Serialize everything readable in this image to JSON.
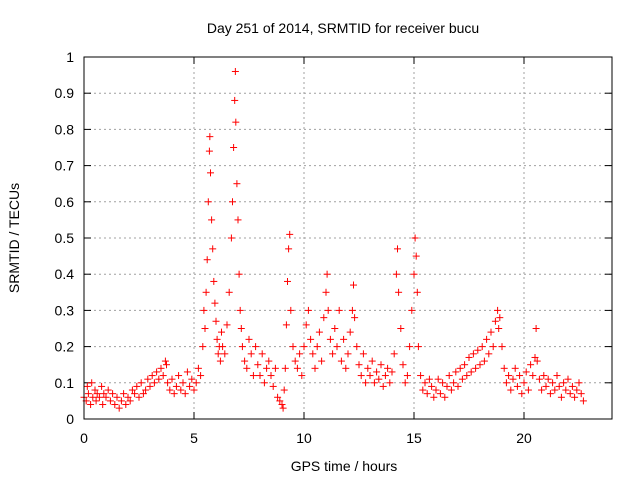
{
  "chart_data": {
    "type": "scatter",
    "title": "Day 251 of 2014, SRMTID for receiver bucu",
    "xlabel": "GPS time / hours",
    "ylabel": "SRMTID / TECUs",
    "xlim": [
      0,
      24
    ],
    "ylim": [
      0,
      1
    ],
    "xticks": [
      0,
      5,
      10,
      15,
      20
    ],
    "xtick_labels": [
      "0",
      "5",
      "10",
      "15",
      "20"
    ],
    "yticks": [
      0,
      0.1,
      0.2,
      0.3,
      0.4,
      0.5,
      0.6,
      0.7,
      0.8,
      0.9,
      1
    ],
    "ytick_labels": [
      "0",
      "0.1",
      "0.2",
      "0.3",
      "0.4",
      "0.5",
      "0.6",
      "0.7",
      "0.8",
      "0.9",
      "1"
    ],
    "grid": true,
    "marker": "+",
    "series_color": "#ff0000",
    "series": [
      {
        "name": "SRMTID",
        "points": [
          [
            0.0,
            0.06
          ],
          [
            0.1,
            0.05
          ],
          [
            0.15,
            0.09
          ],
          [
            0.2,
            0.07
          ],
          [
            0.3,
            0.04
          ],
          [
            0.35,
            0.1
          ],
          [
            0.4,
            0.06
          ],
          [
            0.5,
            0.08
          ],
          [
            0.55,
            0.05
          ],
          [
            0.6,
            0.07
          ],
          [
            0.7,
            0.06
          ],
          [
            0.8,
            0.09
          ],
          [
            0.85,
            0.04
          ],
          [
            0.9,
            0.07
          ],
          [
            1.0,
            0.06
          ],
          [
            1.1,
            0.08
          ],
          [
            1.2,
            0.05
          ],
          [
            1.3,
            0.07
          ],
          [
            1.4,
            0.04
          ],
          [
            1.5,
            0.06
          ],
          [
            1.6,
            0.03
          ],
          [
            1.7,
            0.05
          ],
          [
            1.8,
            0.07
          ],
          [
            1.9,
            0.04
          ],
          [
            2.0,
            0.06
          ],
          [
            2.1,
            0.05
          ],
          [
            2.2,
            0.08
          ],
          [
            2.3,
            0.07
          ],
          [
            2.4,
            0.09
          ],
          [
            2.5,
            0.06
          ],
          [
            2.6,
            0.1
          ],
          [
            2.7,
            0.07
          ],
          [
            2.8,
            0.08
          ],
          [
            2.9,
            0.11
          ],
          [
            3.0,
            0.09
          ],
          [
            3.1,
            0.12
          ],
          [
            3.2,
            0.1
          ],
          [
            3.3,
            0.13
          ],
          [
            3.4,
            0.11
          ],
          [
            3.5,
            0.14
          ],
          [
            3.6,
            0.12
          ],
          [
            3.7,
            0.16
          ],
          [
            3.75,
            0.15
          ],
          [
            3.8,
            0.1
          ],
          [
            3.9,
            0.08
          ],
          [
            4.0,
            0.11
          ],
          [
            4.1,
            0.07
          ],
          [
            4.2,
            0.09
          ],
          [
            4.3,
            0.12
          ],
          [
            4.4,
            0.08
          ],
          [
            4.5,
            0.1
          ],
          [
            4.6,
            0.07
          ],
          [
            4.7,
            0.13
          ],
          [
            4.8,
            0.09
          ],
          [
            4.9,
            0.11
          ],
          [
            5.0,
            0.08
          ],
          [
            5.1,
            0.1
          ],
          [
            5.2,
            0.14
          ],
          [
            5.3,
            0.12
          ],
          [
            5.4,
            0.2
          ],
          [
            5.45,
            0.3
          ],
          [
            5.5,
            0.25
          ],
          [
            5.55,
            0.35
          ],
          [
            5.6,
            0.44
          ],
          [
            5.65,
            0.6
          ],
          [
            5.7,
            0.74
          ],
          [
            5.72,
            0.78
          ],
          [
            5.75,
            0.68
          ],
          [
            5.8,
            0.55
          ],
          [
            5.85,
            0.47
          ],
          [
            5.9,
            0.38
          ],
          [
            5.95,
            0.32
          ],
          [
            6.0,
            0.27
          ],
          [
            6.05,
            0.22
          ],
          [
            6.1,
            0.18
          ],
          [
            6.15,
            0.2
          ],
          [
            6.2,
            0.16
          ],
          [
            6.25,
            0.24
          ],
          [
            6.3,
            0.2
          ],
          [
            6.4,
            0.18
          ],
          [
            6.5,
            0.26
          ],
          [
            6.6,
            0.35
          ],
          [
            6.7,
            0.5
          ],
          [
            6.75,
            0.6
          ],
          [
            6.8,
            0.75
          ],
          [
            6.85,
            0.88
          ],
          [
            6.88,
            0.96
          ],
          [
            6.9,
            0.82
          ],
          [
            6.95,
            0.65
          ],
          [
            7.0,
            0.55
          ],
          [
            7.05,
            0.4
          ],
          [
            7.1,
            0.3
          ],
          [
            7.15,
            0.25
          ],
          [
            7.2,
            0.2
          ],
          [
            7.3,
            0.16
          ],
          [
            7.4,
            0.14
          ],
          [
            7.5,
            0.22
          ],
          [
            7.6,
            0.18
          ],
          [
            7.7,
            0.12
          ],
          [
            7.8,
            0.2
          ],
          [
            7.9,
            0.15
          ],
          [
            8.0,
            0.12
          ],
          [
            8.1,
            0.18
          ],
          [
            8.2,
            0.1
          ],
          [
            8.3,
            0.14
          ],
          [
            8.4,
            0.16
          ],
          [
            8.5,
            0.12
          ],
          [
            8.6,
            0.09
          ],
          [
            8.7,
            0.14
          ],
          [
            8.8,
            0.06
          ],
          [
            8.9,
            0.05
          ],
          [
            9.0,
            0.04
          ],
          [
            9.05,
            0.03
          ],
          [
            9.1,
            0.08
          ],
          [
            9.15,
            0.14
          ],
          [
            9.2,
            0.26
          ],
          [
            9.25,
            0.38
          ],
          [
            9.3,
            0.47
          ],
          [
            9.35,
            0.51
          ],
          [
            9.4,
            0.3
          ],
          [
            9.5,
            0.2
          ],
          [
            9.6,
            0.16
          ],
          [
            9.7,
            0.14
          ],
          [
            9.8,
            0.18
          ],
          [
            9.9,
            0.12
          ],
          [
            10.0,
            0.2
          ],
          [
            10.1,
            0.26
          ],
          [
            10.2,
            0.3
          ],
          [
            10.3,
            0.22
          ],
          [
            10.4,
            0.18
          ],
          [
            10.5,
            0.14
          ],
          [
            10.6,
            0.2
          ],
          [
            10.7,
            0.24
          ],
          [
            10.8,
            0.16
          ],
          [
            10.9,
            0.28
          ],
          [
            11.0,
            0.35
          ],
          [
            11.05,
            0.4
          ],
          [
            11.1,
            0.3
          ],
          [
            11.2,
            0.22
          ],
          [
            11.3,
            0.18
          ],
          [
            11.4,
            0.25
          ],
          [
            11.5,
            0.2
          ],
          [
            11.6,
            0.3
          ],
          [
            11.7,
            0.16
          ],
          [
            11.8,
            0.22
          ],
          [
            11.9,
            0.14
          ],
          [
            12.0,
            0.18
          ],
          [
            12.1,
            0.24
          ],
          [
            12.2,
            0.3
          ],
          [
            12.25,
            0.37
          ],
          [
            12.3,
            0.28
          ],
          [
            12.4,
            0.2
          ],
          [
            12.5,
            0.15
          ],
          [
            12.6,
            0.12
          ],
          [
            12.7,
            0.18
          ],
          [
            12.8,
            0.1
          ],
          [
            12.9,
            0.14
          ],
          [
            13.0,
            0.12
          ],
          [
            13.1,
            0.16
          ],
          [
            13.2,
            0.1
          ],
          [
            13.3,
            0.13
          ],
          [
            13.4,
            0.11
          ],
          [
            13.5,
            0.15
          ],
          [
            13.6,
            0.09
          ],
          [
            13.7,
            0.12
          ],
          [
            13.8,
            0.14
          ],
          [
            13.9,
            0.1
          ],
          [
            14.0,
            0.13
          ],
          [
            14.1,
            0.18
          ],
          [
            14.2,
            0.4
          ],
          [
            14.25,
            0.47
          ],
          [
            14.3,
            0.35
          ],
          [
            14.4,
            0.25
          ],
          [
            14.5,
            0.15
          ],
          [
            14.6,
            0.1
          ],
          [
            14.7,
            0.12
          ],
          [
            14.8,
            0.2
          ],
          [
            14.9,
            0.3
          ],
          [
            15.0,
            0.4
          ],
          [
            15.05,
            0.5
          ],
          [
            15.1,
            0.45
          ],
          [
            15.15,
            0.35
          ],
          [
            15.2,
            0.2
          ],
          [
            15.3,
            0.12
          ],
          [
            15.4,
            0.08
          ],
          [
            15.5,
            0.1
          ],
          [
            15.6,
            0.07
          ],
          [
            15.7,
            0.11
          ],
          [
            15.8,
            0.09
          ],
          [
            15.9,
            0.06
          ],
          [
            16.0,
            0.08
          ],
          [
            16.1,
            0.11
          ],
          [
            16.2,
            0.07
          ],
          [
            16.3,
            0.1
          ],
          [
            16.4,
            0.06
          ],
          [
            16.5,
            0.09
          ],
          [
            16.6,
            0.12
          ],
          [
            16.7,
            0.08
          ],
          [
            16.8,
            0.1
          ],
          [
            16.9,
            0.13
          ],
          [
            17.0,
            0.09
          ],
          [
            17.1,
            0.14
          ],
          [
            17.2,
            0.11
          ],
          [
            17.3,
            0.15
          ],
          [
            17.4,
            0.12
          ],
          [
            17.5,
            0.17
          ],
          [
            17.6,
            0.13
          ],
          [
            17.7,
            0.18
          ],
          [
            17.8,
            0.14
          ],
          [
            17.9,
            0.19
          ],
          [
            18.0,
            0.15
          ],
          [
            18.1,
            0.2
          ],
          [
            18.2,
            0.16
          ],
          [
            18.3,
            0.22
          ],
          [
            18.4,
            0.18
          ],
          [
            18.5,
            0.24
          ],
          [
            18.6,
            0.2
          ],
          [
            18.7,
            0.27
          ],
          [
            18.8,
            0.3
          ],
          [
            18.85,
            0.25
          ],
          [
            18.9,
            0.28
          ],
          [
            19.0,
            0.2
          ],
          [
            19.1,
            0.14
          ],
          [
            19.2,
            0.1
          ],
          [
            19.3,
            0.12
          ],
          [
            19.4,
            0.08
          ],
          [
            19.5,
            0.11
          ],
          [
            19.6,
            0.14
          ],
          [
            19.7,
            0.09
          ],
          [
            19.8,
            0.12
          ],
          [
            19.9,
            0.07
          ],
          [
            20.0,
            0.1
          ],
          [
            20.1,
            0.13
          ],
          [
            20.2,
            0.08
          ],
          [
            20.3,
            0.15
          ],
          [
            20.4,
            0.12
          ],
          [
            20.5,
            0.17
          ],
          [
            20.55,
            0.25
          ],
          [
            20.6,
            0.16
          ],
          [
            20.7,
            0.11
          ],
          [
            20.8,
            0.08
          ],
          [
            20.9,
            0.12
          ],
          [
            21.0,
            0.09
          ],
          [
            21.1,
            0.11
          ],
          [
            21.2,
            0.07
          ],
          [
            21.3,
            0.1
          ],
          [
            21.4,
            0.08
          ],
          [
            21.5,
            0.12
          ],
          [
            21.6,
            0.09
          ],
          [
            21.7,
            0.06
          ],
          [
            21.8,
            0.1
          ],
          [
            21.9,
            0.08
          ],
          [
            22.0,
            0.11
          ],
          [
            22.1,
            0.07
          ],
          [
            22.2,
            0.09
          ],
          [
            22.3,
            0.06
          ],
          [
            22.4,
            0.08
          ],
          [
            22.5,
            0.1
          ],
          [
            22.6,
            0.07
          ],
          [
            22.7,
            0.05
          ]
        ]
      }
    ]
  }
}
